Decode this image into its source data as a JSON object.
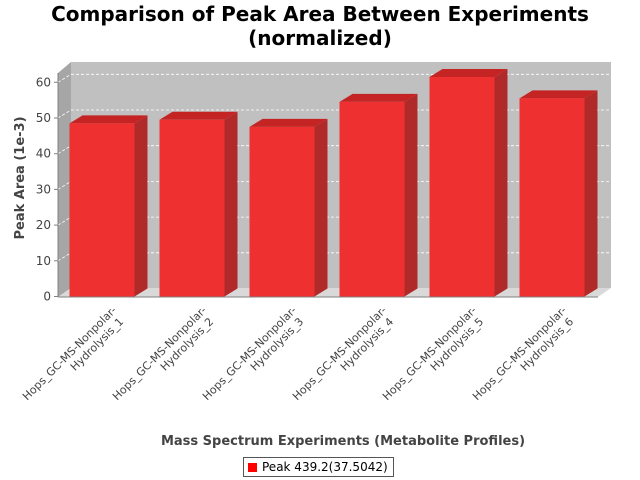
{
  "chart_data": {
    "type": "bar",
    "title_line1": "Comparison of Peak Area Between Experiments",
    "title_line2": "(normalized)",
    "xlabel": "Mass Spectrum Experiments (Metabolite Profiles)",
    "ylabel": "Peak Area (1e-3)",
    "ylim": [
      0,
      65
    ],
    "yticks": [
      0,
      10,
      20,
      30,
      40,
      50,
      60
    ],
    "categories": [
      "Hops_GC-MS-Nonpolar-Hydrolysis_1",
      "Hops_GC-MS-Nonpolar-Hydrolysis_2",
      "Hops_GC-MS-Nonpolar-Hydrolysis_3",
      "Hops_GC-MS-Nonpolar-Hydrolysis_4",
      "Hops_GC-MS-Nonpolar-Hydrolysis_5",
      "Hops_GC-MS-Nonpolar-Hydrolysis_6"
    ],
    "category_lines": [
      [
        "Hops_GC-MS-Nonpolar-",
        "Hydrolysis_1"
      ],
      [
        "Hops_GC-MS-Nonpolar-",
        "Hydrolysis_2"
      ],
      [
        "Hops_GC-MS-Nonpolar-",
        "Hydrolysis_3"
      ],
      [
        "Hops_GC-MS-Nonpolar-",
        "Hydrolysis_4"
      ],
      [
        "Hops_GC-MS-Nonpolar-",
        "Hydrolysis_5"
      ],
      [
        "Hops_GC-MS-Nonpolar-",
        "Hydrolysis_6"
      ]
    ],
    "series": [
      {
        "name": "Peak 439.2(37.5042)",
        "color": "#ff0000",
        "values": [
          48.5,
          49.5,
          47.5,
          54.5,
          61.5,
          55.5
        ]
      }
    ],
    "grid": true,
    "legend_position": "bottom",
    "style": "3d-bar",
    "plot_background": "#c0c0c0"
  }
}
